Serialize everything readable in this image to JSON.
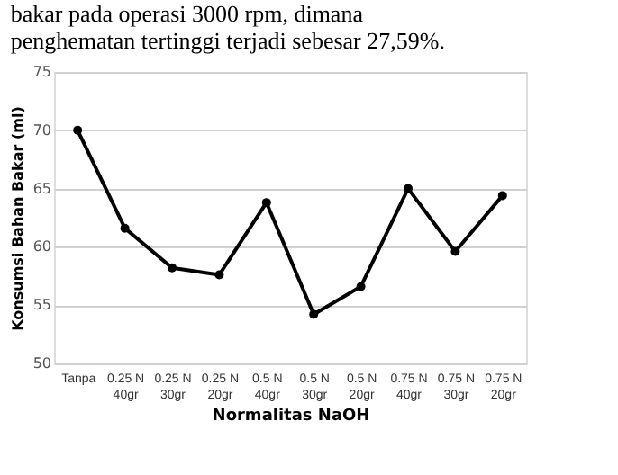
{
  "chart_data": {
    "type": "line",
    "xlabel": "Normalitas NaOH",
    "ylabel": "Konsumsi Bahan Bakar (ml)",
    "annotations": [
      "bakar pada operasi 3000 rpm, dimana",
      "penghematan tertinggi terjadi sebesar 27,59%."
    ],
    "categories": [
      "Tanpa",
      "0.25 N\n40gr",
      "0.25 N\n30gr",
      "0.25 N\n20gr",
      "0.5 N\n40gr",
      "0.5 N\n30gr",
      "0.5 N\n20gr",
      "0.75 N\n40gr",
      "0.75 N\n30gr",
      "0.75 N\n20gr"
    ],
    "series": [
      {
        "color": "#000000",
        "values": [
          70,
          61.6,
          58.2,
          57.6,
          63.8,
          54.2,
          56.6,
          65.0,
          59.6,
          64.4
        ]
      }
    ],
    "ylim": [
      50,
      75
    ],
    "yticks": [
      50,
      55,
      60,
      65,
      70,
      75
    ],
    "grid": "y",
    "marker": "circle",
    "line_style": "solid"
  }
}
